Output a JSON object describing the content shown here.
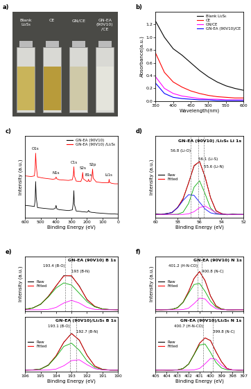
{
  "chart_data": [
    {
      "type": "photo",
      "panel": "a)",
      "labels": [
        "Blank\nLi₂S₆",
        "CE",
        "GN/CE",
        "GN-EA\n(90V10)\n/CE"
      ],
      "colors": [
        "#c9b45a",
        "#b89b3a",
        "#cfc9a8",
        "#e4e4dc"
      ]
    },
    {
      "type": "line",
      "panel": "b)",
      "x_label": "Wavelength(nm)",
      "y_label": "Absorbance(a.u.)",
      "x": [
        350,
        375,
        400,
        425,
        450,
        475,
        500,
        525,
        550,
        575,
        600
      ],
      "xlim": [
        350,
        600
      ],
      "xticks": [
        350,
        400,
        450,
        500,
        550,
        600
      ],
      "ylim": [
        0.0,
        1.4
      ],
      "yticks": [
        0.0,
        0.2,
        0.4,
        0.6,
        0.8,
        1.0,
        1.2
      ],
      "legend": "upper right",
      "series": [
        {
          "name": "Blank Li₂S₆",
          "color": "#000000",
          "values": [
            1.25,
            1.0,
            0.82,
            0.72,
            0.6,
            0.48,
            0.38,
            0.3,
            0.24,
            0.2,
            0.17
          ]
        },
        {
          "name": "CE",
          "color": "#ff0000",
          "values": [
            0.75,
            0.45,
            0.3,
            0.22,
            0.16,
            0.12,
            0.09,
            0.07,
            0.06,
            0.05,
            0.05
          ]
        },
        {
          "name": "GN/CE",
          "color": "#ff00ff",
          "values": [
            0.38,
            0.2,
            0.12,
            0.08,
            0.06,
            0.04,
            0.03,
            0.03,
            0.02,
            0.02,
            0.02
          ]
        },
        {
          "name": "GN-EA (90V10)/CE",
          "color": "#0000ff",
          "values": [
            0.28,
            0.12,
            0.06,
            0.04,
            0.03,
            0.02,
            0.02,
            0.01,
            0.01,
            0.01,
            0.01
          ]
        }
      ]
    },
    {
      "type": "survey",
      "panel": "c)",
      "x_label": "Binding Energy (eV)",
      "y_label": "Intensity (a.u.)",
      "x": [
        600,
        560,
        540,
        535,
        532,
        528,
        520,
        480,
        420,
        405,
        400,
        395,
        380,
        320,
        295,
        288,
        285,
        282,
        270,
        240,
        232,
        228,
        224,
        200,
        194,
        190,
        186,
        175,
        168,
        164,
        160,
        140,
        100,
        60,
        57,
        54,
        40,
        20,
        0
      ],
      "xlim": [
        600,
        0
      ],
      "xticks": [
        600,
        500,
        400,
        300,
        200,
        100,
        0
      ],
      "ylim": [
        0,
        3.6
      ],
      "tick_labels": "x",
      "legend": "upper right",
      "series": [
        {
          "name": "GN-EA (90V10)",
          "color": "#000000",
          "values": [
            0.55,
            0.52,
            0.5,
            0.8,
            1.6,
            0.9,
            0.45,
            0.42,
            0.38,
            0.42,
            0.55,
            0.4,
            0.36,
            0.32,
            0.35,
            0.7,
            1.2,
            0.6,
            0.3,
            0.28,
            0.27,
            0.27,
            0.27,
            0.25,
            0.28,
            0.33,
            0.27,
            0.25,
            0.24,
            0.24,
            0.24,
            0.22,
            0.2,
            0.18,
            0.18,
            0.18,
            0.17,
            0.17,
            0.16
          ]
        },
        {
          "name": "GN-EA (90V10) /Li₂S₆",
          "color": "#ff0000",
          "values": [
            1.85,
            1.82,
            1.85,
            2.2,
            2.85,
            2.3,
            1.8,
            1.75,
            1.7,
            1.72,
            1.8,
            1.72,
            1.68,
            1.65,
            1.68,
            1.9,
            2.25,
            1.85,
            1.62,
            1.6,
            1.75,
            2.0,
            1.72,
            1.6,
            1.62,
            1.7,
            1.6,
            1.62,
            1.85,
            2.15,
            1.75,
            1.58,
            1.55,
            1.55,
            1.7,
            1.56,
            1.52,
            1.5,
            1.5
          ]
        }
      ],
      "annotations": [
        {
          "text": "O1s",
          "x": 532
        },
        {
          "text": "N1s",
          "x": 400
        },
        {
          "text": "C1s",
          "x": 285
        },
        {
          "text": "S2s",
          "x": 228
        },
        {
          "text": "B1s",
          "x": 190
        },
        {
          "text": "S2p",
          "x": 164
        },
        {
          "text": "Li1s",
          "x": 57
        }
      ]
    },
    {
      "type": "spectrum",
      "panel": "d)",
      "title": "GN-EA (90V10) /Li₂S₆ Li 1s",
      "x_label": "Binding Energy (eV)",
      "y_label": "Intensity (a.u.)",
      "x": [
        60,
        59.5,
        59,
        58.5,
        58,
        57.5,
        57,
        56.5,
        56,
        55.5,
        55,
        54.5,
        54,
        53.5,
        53,
        52.5,
        52
      ],
      "xlim": [
        60,
        52
      ],
      "xticks": [
        60,
        58,
        56,
        54,
        52
      ],
      "ylim": [
        0,
        2.4
      ],
      "tick_labels": "x",
      "legend": "center left",
      "series": [
        {
          "name": "Raw",
          "color": "#000000",
          "values": [
            0.12,
            0.1,
            0.13,
            0.15,
            0.31,
            0.55,
            1.03,
            1.52,
            1.66,
            1.2,
            0.6,
            0.2,
            0.13,
            0.09,
            0.11,
            0.1,
            0.1
          ]
        },
        {
          "name": "Fitted",
          "color": "#ff0000",
          "values": [
            0.1,
            0.102,
            0.114,
            0.163,
            0.302,
            0.576,
            1.017,
            1.54,
            1.65,
            1.22,
            0.588,
            0.218,
            0.118,
            0.1,
            0.1,
            0.1,
            0.1
          ]
        },
        {
          "color": "#0000ff",
          "values": [
            0.1,
            0.102,
            0.114,
            0.163,
            0.295,
            0.51,
            0.68,
            0.66,
            0.46,
            0.26,
            0.148,
            0.11,
            0.102,
            0.1,
            0.1,
            0.1,
            0.1
          ]
        },
        {
          "color": "#00aa00",
          "values": [
            0.1,
            0.1,
            0.1,
            0.1,
            0.107,
            0.166,
            0.42,
            0.9,
            1.09,
            0.71,
            0.29,
            0.13,
            0.102,
            0.1,
            0.1,
            0.1,
            0.1
          ]
        },
        {
          "color": "#ff00ff",
          "values": [
            0.1,
            0.1,
            0.1,
            0.1,
            0.1,
            0.1,
            0.117,
            0.18,
            0.3,
            0.35,
            0.25,
            0.148,
            0.108,
            0.1,
            0.1,
            0.1,
            0.1
          ]
        }
      ],
      "annotations": [
        {
          "text": "56.8 (Li-O)",
          "x": 56.8
        },
        {
          "text": "56.1 (Li-S)",
          "x": 56.1
        },
        {
          "text": "55.6 (Li-N)",
          "x": 55.6
        }
      ]
    },
    {
      "type": "spectrum",
      "panel": "e)",
      "title": "GN-EA (90V10) B 1s",
      "y_label": "Intensity (a.u.)",
      "x": [
        196,
        195.5,
        195,
        194.5,
        194,
        193.5,
        193,
        192.5,
        192,
        191.5,
        191,
        190.5,
        190
      ],
      "xlim": [
        196,
        190
      ],
      "xticks": [
        196,
        195,
        194,
        193,
        192,
        191,
        190
      ],
      "ylim": [
        0,
        2.0
      ],
      "tick_labels": false,
      "legend": "center left",
      "series": [
        {
          "name": "Raw",
          "color": "#000000",
          "values": [
            0.07,
            0.12,
            0.25,
            0.55,
            0.92,
            1.31,
            1.29,
            0.93,
            0.42,
            0.18,
            0.08,
            0.06,
            0.05
          ]
        },
        {
          "name": "Fitted",
          "color": "#ff0000",
          "values": [
            0.065,
            0.116,
            0.26,
            0.535,
            0.937,
            1.29,
            1.31,
            0.91,
            0.437,
            0.175,
            0.081,
            0.056,
            0.051
          ]
        },
        {
          "color": "#00aa00",
          "values": [
            0.065,
            0.116,
            0.26,
            0.52,
            0.85,
            1.04,
            0.96,
            0.66,
            0.35,
            0.16,
            0.08,
            0.056,
            0.051
          ]
        },
        {
          "color": "#ff00ff",
          "values": [
            0.05,
            0.05,
            0.051,
            0.065,
            0.137,
            0.3,
            0.4,
            0.3,
            0.137,
            0.065,
            0.051,
            0.05,
            0.05
          ]
        }
      ],
      "annotations": [
        {
          "text": "193.4 (B-O)",
          "x": 193.4
        },
        {
          "text": "193 (B-N)",
          "x": 193
        }
      ]
    },
    {
      "type": "spectrum",
      "title": "GN-EA (90V10)/Li₂S₆ B 1s",
      "x_label": "Binding Energy (eV)",
      "x": [
        196,
        195.5,
        195,
        194.5,
        194,
        193.5,
        193,
        192.5,
        192,
        191.5,
        191,
        190.5,
        190
      ],
      "xlim": [
        196,
        190
      ],
      "xticks": [
        196,
        195,
        194,
        193,
        192,
        191,
        190
      ],
      "ylim": [
        0,
        2.0
      ],
      "tick_labels": "x",
      "legend": "center left",
      "series": [
        {
          "name": "Raw",
          "color": "#000000",
          "values": [
            0.05,
            0.06,
            0.09,
            0.24,
            0.57,
            1.07,
            1.4,
            1.15,
            0.6,
            0.2,
            0.08,
            0.05,
            0.05
          ]
        },
        {
          "name": "Fitted",
          "color": "#ff0000",
          "values": [
            0.05,
            0.056,
            0.09,
            0.229,
            0.578,
            1.08,
            1.39,
            1.16,
            0.59,
            0.204,
            0.077,
            0.052,
            0.05
          ]
        },
        {
          "color": "#00aa00",
          "values": [
            0.05,
            0.056,
            0.09,
            0.225,
            0.54,
            0.92,
            1.04,
            0.78,
            0.39,
            0.15,
            0.07,
            0.052,
            0.05
          ]
        },
        {
          "color": "#ff00ff",
          "values": [
            0.05,
            0.05,
            0.05,
            0.054,
            0.088,
            0.21,
            0.4,
            0.43,
            0.25,
            0.104,
            0.057,
            0.05,
            0.05
          ]
        }
      ],
      "annotations": [
        {
          "text": "193.1 (B-O)",
          "x": 193.1
        },
        {
          "text": "192.7 (B-N)",
          "x": 192.7
        }
      ]
    },
    {
      "type": "spectrum",
      "panel": "f)",
      "title": "GN-EA (90V10) N 1s",
      "y_label": "Intensity (a.u.)",
      "x": [
        405,
        404.5,
        404,
        403.5,
        403,
        402.5,
        402,
        401.5,
        401,
        400.5,
        400,
        399.5,
        399,
        398.5,
        398,
        397.5,
        397
      ],
      "xlim": [
        405,
        397
      ],
      "xticks": [
        405,
        404,
        403,
        402,
        401,
        400,
        399,
        398,
        397
      ],
      "ylim": [
        0,
        2.0
      ],
      "tick_labels": false,
      "legend": "center left",
      "series": [
        {
          "name": "Raw",
          "color": "#000000",
          "values": [
            0.06,
            0.05,
            0.06,
            0.07,
            0.13,
            0.33,
            0.72,
            1.2,
            1.46,
            1.12,
            0.56,
            0.2,
            0.08,
            0.05,
            0.05,
            0.06,
            0.05
          ]
        },
        {
          "name": "Fitted",
          "color": "#ff0000",
          "values": [
            0.05,
            0.05,
            0.052,
            0.066,
            0.13,
            0.328,
            0.721,
            1.21,
            1.45,
            1.13,
            0.55,
            0.193,
            0.078,
            0.053,
            0.05,
            0.05,
            0.05
          ]
        },
        {
          "color": "#00aa00",
          "values": [
            0.05,
            0.05,
            0.052,
            0.066,
            0.13,
            0.32,
            0.66,
            0.98,
            1.02,
            0.73,
            0.37,
            0.15,
            0.073,
            0.053,
            0.05,
            0.05,
            0.05
          ]
        },
        {
          "color": "#ff00ff",
          "values": [
            0.05,
            0.05,
            0.05,
            0.05,
            0.05,
            0.058,
            0.111,
            0.28,
            0.48,
            0.45,
            0.23,
            0.093,
            0.055,
            0.05,
            0.05,
            0.05,
            0.05
          ]
        }
      ],
      "annotations": [
        {
          "text": "401.2 (H-N-CO)",
          "x": 401.2
        },
        {
          "text": "400.8 (N-C)",
          "x": 400.8
        }
      ]
    },
    {
      "type": "spectrum",
      "title": "GN-EA (90V10)/Li₂S₆ N 1s",
      "x_label": "Binding Energy (eV)",
      "x": [
        405,
        404.5,
        404,
        403.5,
        403,
        402.5,
        402,
        401.5,
        401,
        400.5,
        400,
        399.5,
        399,
        398.5,
        398,
        397.5,
        397
      ],
      "xlim": [
        405,
        397
      ],
      "xticks": [
        405,
        404,
        403,
        402,
        401,
        400,
        399,
        398,
        397
      ],
      "ylim": [
        0,
        2.0
      ],
      "tick_labels": "x",
      "legend": "center left",
      "series": [
        {
          "name": "Raw",
          "color": "#000000",
          "values": [
            0.05,
            0.06,
            0.05,
            0.05,
            0.06,
            0.11,
            0.27,
            0.63,
            1.04,
            1.23,
            1.14,
            0.72,
            0.36,
            0.11,
            0.06,
            0.05,
            0.05
          ]
        },
        {
          "name": "Fitted",
          "color": "#ff0000",
          "values": [
            0.05,
            0.05,
            0.05,
            0.051,
            0.059,
            0.106,
            0.27,
            0.628,
            1.031,
            1.24,
            1.13,
            0.73,
            0.357,
            0.107,
            0.056,
            0.05,
            0.05
          ]
        },
        {
          "color": "#00aa00",
          "values": [
            0.05,
            0.05,
            0.05,
            0.051,
            0.059,
            0.106,
            0.27,
            0.62,
            0.97,
            1.01,
            0.7,
            0.33,
            0.127,
            0.064,
            0.051,
            0.05,
            0.05
          ]
        },
        {
          "color": "#ff00ff",
          "values": [
            0.05,
            0.05,
            0.05,
            0.05,
            0.05,
            0.05,
            0.05,
            0.058,
            0.111,
            0.28,
            0.48,
            0.45,
            0.23,
            0.093,
            0.055,
            0.05,
            0.05
          ]
        }
      ],
      "annotations": [
        {
          "text": "400.7 (H-N-CO)",
          "x": 400.7
        },
        {
          "text": "399.8 (N-C)",
          "x": 399.8
        }
      ]
    }
  ]
}
